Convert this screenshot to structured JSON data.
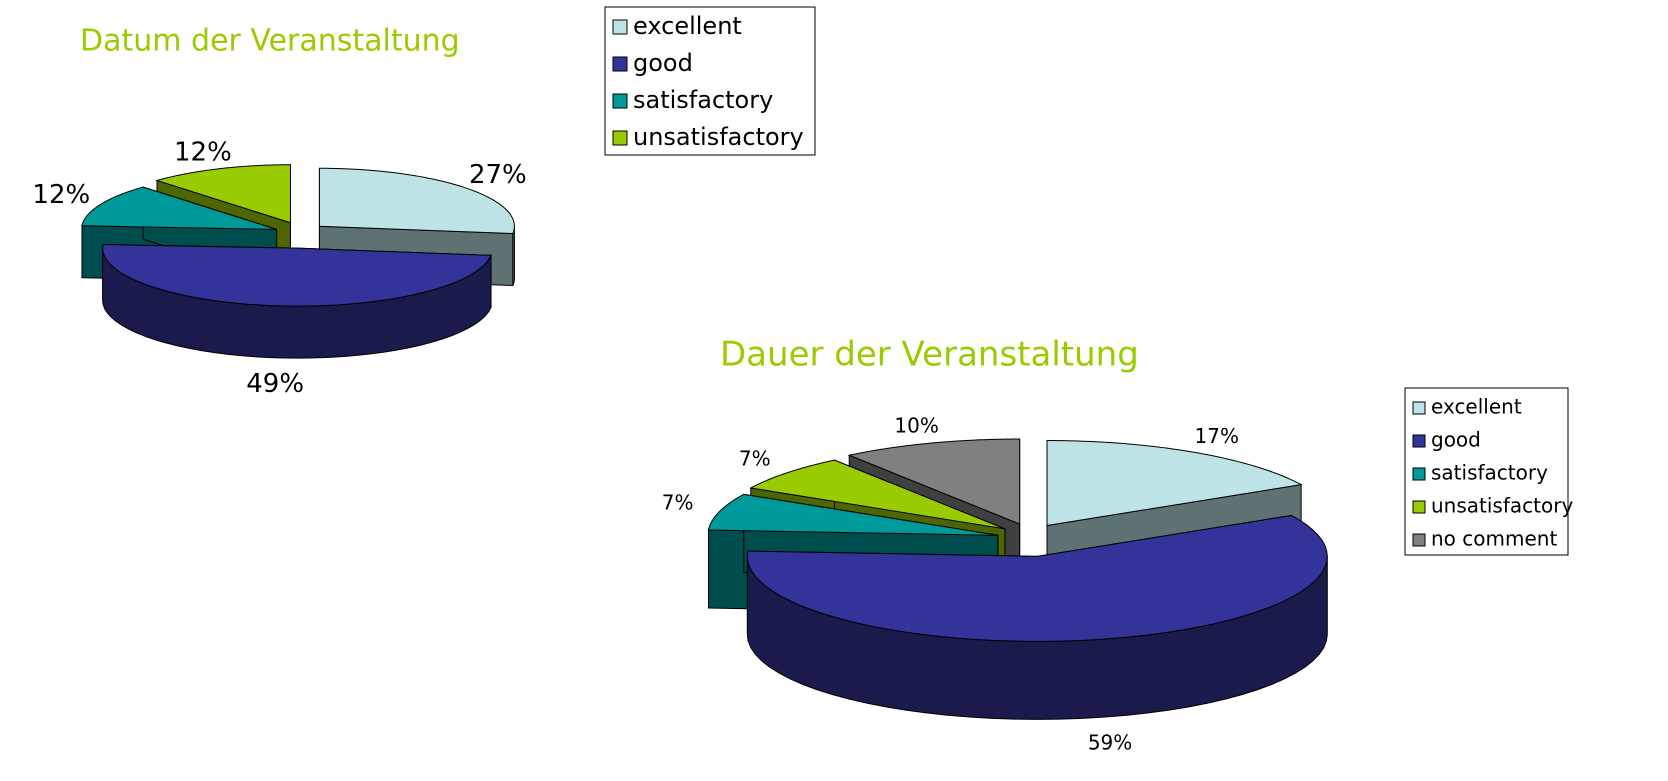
{
  "chart_data": [
    {
      "type": "pie",
      "title": "Datum der Veranstaltung",
      "categories": [
        "excellent",
        "good",
        "satisfactory",
        "unsatisfactory"
      ],
      "values": [
        27,
        49,
        12,
        12
      ],
      "value_labels": [
        "27%",
        "49%",
        "12%",
        "12%"
      ],
      "colors": [
        "#bde3e6",
        "#333399",
        "#009999",
        "#99cc00"
      ],
      "legend": "top-right"
    },
    {
      "type": "pie",
      "title": "Dauer der Veranstaltung",
      "categories": [
        "excellent",
        "good",
        "satisfactory",
        "unsatisfactory",
        "no comment"
      ],
      "values": [
        17,
        59,
        7,
        7,
        10
      ],
      "value_labels": [
        "17%",
        "59%",
        "7%",
        "7%",
        "10%"
      ],
      "colors": [
        "#bde3e6",
        "#333399",
        "#009999",
        "#99cc00",
        "#808080"
      ],
      "legend": "right"
    }
  ]
}
